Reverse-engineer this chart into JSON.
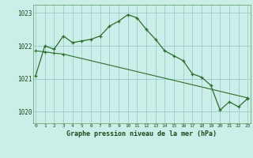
{
  "title": "Graphe pression niveau de la mer (hPa)",
  "bg_color": "#cceee8",
  "grid_color": "#99cccc",
  "line_color": "#2d6e2d",
  "line1": {
    "x": [
      0,
      1,
      2,
      3,
      4,
      5,
      6,
      7,
      8,
      9,
      10,
      11,
      12,
      13,
      14,
      15,
      16,
      17,
      18,
      19,
      20,
      21,
      22,
      23
    ],
    "y": [
      1021.1,
      1022.0,
      1021.9,
      1022.3,
      1022.1,
      1022.15,
      1022.2,
      1022.3,
      1022.6,
      1022.75,
      1022.95,
      1022.85,
      1022.5,
      1022.2,
      1021.85,
      1021.7,
      1021.55,
      1021.15,
      1021.05,
      1020.8,
      1020.05,
      1020.3,
      1020.15,
      1020.4
    ]
  },
  "line2": {
    "x": [
      0,
      1,
      2,
      3,
      23
    ],
    "y": [
      1021.85,
      1021.82,
      1021.78,
      1021.75,
      1020.42
    ]
  },
  "yticks": [
    1020,
    1021,
    1022,
    1023
  ],
  "xticks": [
    0,
    1,
    2,
    3,
    4,
    5,
    6,
    7,
    8,
    9,
    10,
    11,
    12,
    13,
    14,
    15,
    16,
    17,
    18,
    19,
    20,
    21,
    22,
    23
  ],
  "ylim": [
    1019.65,
    1023.25
  ],
  "xlim": [
    -0.3,
    23.3
  ]
}
